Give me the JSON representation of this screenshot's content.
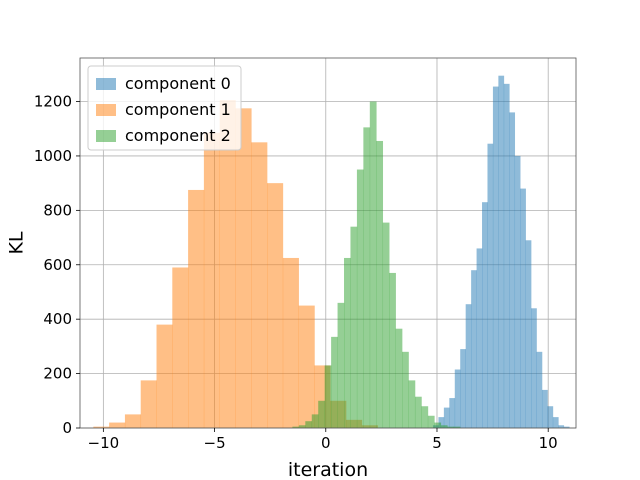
{
  "chart_data": {
    "type": "histogram",
    "title": "",
    "xlabel": "iteration",
    "ylabel": "KL",
    "xlim": [
      -11.05,
      11.25
    ],
    "ylim": [
      0,
      1360
    ],
    "x_ticks": [
      -10,
      -5,
      0,
      5,
      10
    ],
    "x_tick_labels": [
      "−10",
      "−5",
      "0",
      "5",
      "10"
    ],
    "y_ticks": [
      0,
      200,
      400,
      600,
      800,
      1000,
      1200
    ],
    "y_tick_labels": [
      "0",
      "200",
      "400",
      "600",
      "800",
      "1000",
      "1200"
    ],
    "grid": true,
    "legend_position": "top-left",
    "series": [
      {
        "name": "component 0",
        "color": "#1f77b4",
        "opacity": 0.5,
        "bin_start": 4.82,
        "bin_width": 0.245,
        "counts": [
          10,
          40,
          75,
          110,
          215,
          290,
          455,
          580,
          660,
          830,
          1045,
          1255,
          1295,
          1265,
          1160,
          1000,
          880,
          690,
          440,
          280,
          140,
          80,
          40,
          10,
          5
        ]
      },
      {
        "name": "component 1",
        "color": "#ff7f0e",
        "opacity": 0.5,
        "bin_start": -10.45,
        "bin_width": 0.71,
        "counts": [
          5,
          20,
          50,
          175,
          380,
          590,
          875,
          1085,
          1205,
          1175,
          1050,
          900,
          625,
          450,
          230,
          100,
          30,
          10
        ]
      },
      {
        "name": "component 2",
        "color": "#2ca02c",
        "opacity": 0.5,
        "bin_start": -1.5,
        "bin_width": 0.29,
        "counts": [
          5,
          10,
          25,
          50,
          100,
          230,
          335,
          460,
          625,
          740,
          950,
          1105,
          1200,
          1055,
          755,
          570,
          365,
          280,
          175,
          115,
          80,
          45,
          20,
          10,
          5,
          5
        ]
      }
    ]
  }
}
